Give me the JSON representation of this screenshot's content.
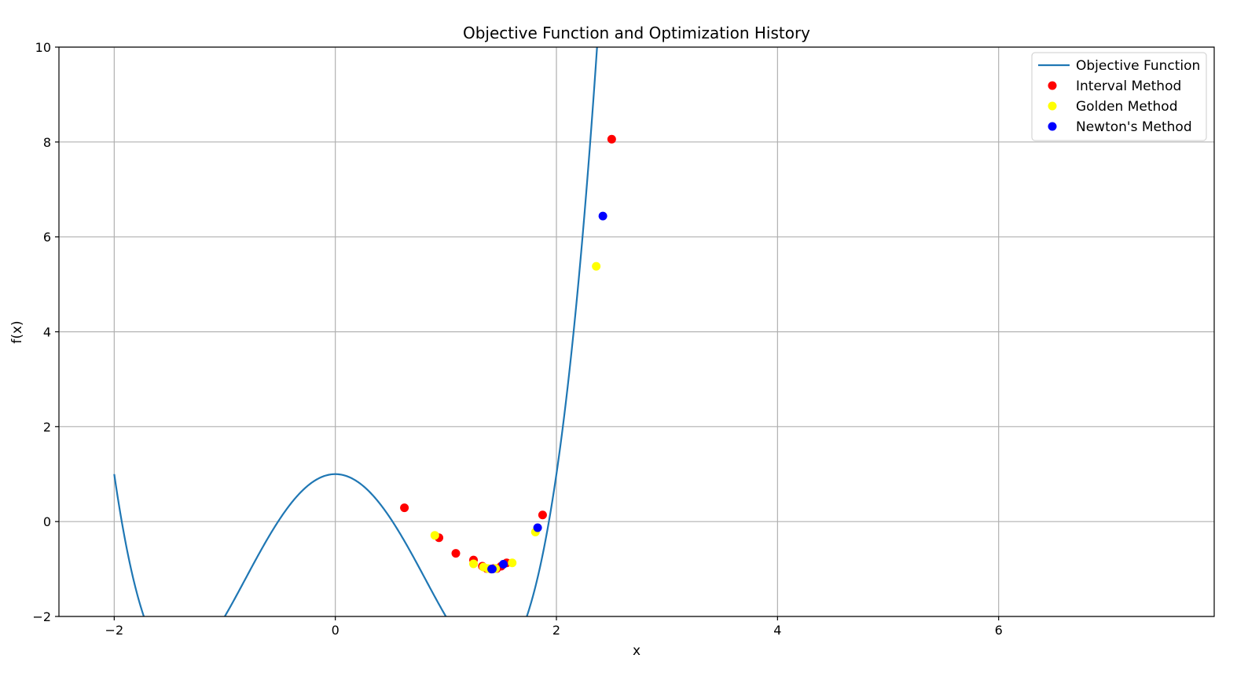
{
  "chart_data": {
    "type": "line",
    "title": "Objective Function and Optimization History",
    "xlabel": "x",
    "ylabel": "f(x)",
    "xlim": [
      -2.5,
      7.95
    ],
    "ylim": [
      -2,
      10
    ],
    "x_ticks": [
      -2,
      0,
      2,
      4,
      6
    ],
    "y_ticks": [
      -2,
      0,
      2,
      4,
      6,
      8,
      10
    ],
    "grid": true,
    "legend_position": "top-right",
    "function": {
      "name": "Objective Function",
      "expression": "x^4 - 4x^2 + 1",
      "domain": [
        -2,
        2.6
      ],
      "color": "#1f77b4"
    },
    "series": [
      {
        "name": "Interval Method",
        "color": "#ff0000",
        "points": [
          [
            2.5,
            8.06
          ],
          [
            0.625,
            0.29
          ],
          [
            1.875,
            0.14
          ],
          [
            0.9375,
            -0.34
          ],
          [
            1.09,
            -0.67
          ],
          [
            1.25,
            -0.81
          ],
          [
            1.33,
            -0.94
          ],
          [
            1.37,
            -0.99
          ],
          [
            1.41,
            -1.0
          ],
          [
            1.43,
            -0.99
          ],
          [
            1.46,
            -0.99
          ],
          [
            1.5,
            -0.94
          ],
          [
            1.55,
            -0.87
          ]
        ]
      },
      {
        "name": "Golden Method",
        "color": "#ffff00",
        "points": [
          [
            2.36,
            5.38
          ],
          [
            0.9,
            -0.29
          ],
          [
            1.81,
            -0.22
          ],
          [
            1.25,
            -0.89
          ],
          [
            1.34,
            -0.96
          ],
          [
            1.38,
            -0.99
          ],
          [
            1.41,
            -1.0
          ],
          [
            1.45,
            -0.99
          ],
          [
            1.6,
            -0.87
          ]
        ]
      },
      {
        "name": "Newton's Method",
        "color": "#0000ff",
        "points": [
          [
            2.42,
            6.44
          ],
          [
            1.83,
            -0.13
          ],
          [
            1.52,
            -0.9
          ],
          [
            1.42,
            -1.0
          ],
          [
            1.414,
            -1.0
          ]
        ]
      }
    ]
  }
}
